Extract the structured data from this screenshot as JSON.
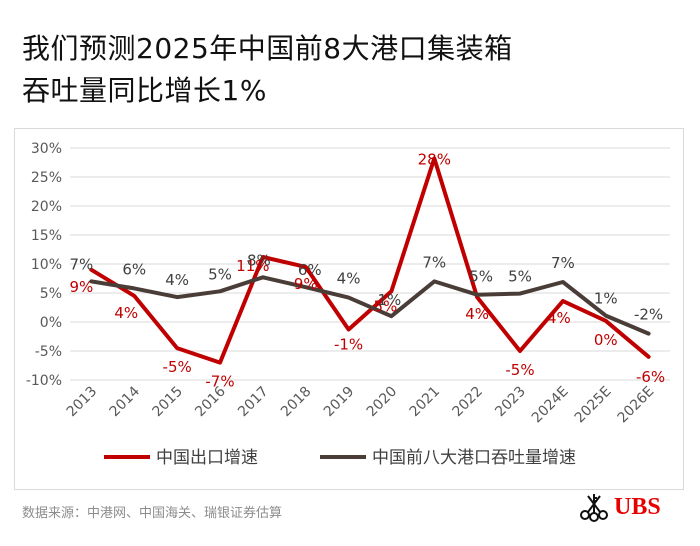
{
  "title": {
    "line1": "我们预测2025年中国前8大港口集装箱",
    "line2": "吞吐量同比增长1%"
  },
  "source": "数据来源：中港网、中国海关、瑞银证券估算",
  "logo": {
    "text": "UBS",
    "color": "#e60000"
  },
  "chart_data": {
    "type": "line",
    "categories": [
      "2013",
      "2014",
      "2015",
      "2016",
      "2017",
      "2018",
      "2019",
      "2020",
      "2021",
      "2022",
      "2023",
      "2024E",
      "2025E",
      "2026E"
    ],
    "ylim": [
      -10,
      30
    ],
    "yticks": [
      -10,
      -5,
      0,
      5,
      10,
      15,
      20,
      25,
      30
    ],
    "ytick_labels": [
      "-10%",
      "-5%",
      "0%",
      "5%",
      "10%",
      "15%",
      "20%",
      "25%",
      "30%"
    ],
    "grid": true,
    "legend_position": "bottom",
    "series": [
      {
        "name": "中国出口增速",
        "color": "#c00000",
        "values": [
          9,
          4.5,
          -4.5,
          -7,
          11.2,
          9.5,
          -1.3,
          5.3,
          28.2,
          4.3,
          -5,
          3.6,
          0.2,
          -6
        ],
        "labels": [
          "9%",
          "4%",
          "-5%",
          "-7%",
          "11%",
          "9%",
          "-1%",
          "5%",
          "28%",
          "4%",
          "-5%",
          "4%",
          "0%",
          "-6%"
        ]
      },
      {
        "name": "中国前八大港口吞吐量增速",
        "color": "#4a3d38",
        "values": [
          7,
          5.8,
          4.3,
          5.3,
          7.7,
          6,
          4.2,
          1,
          7,
          4.7,
          4.9,
          6.9,
          1.1,
          -2
        ],
        "labels": [
          "7%",
          "6%",
          "4%",
          "5%",
          "8%",
          "6%",
          "4%",
          "1%",
          "7%",
          "5%",
          "5%",
          "7%",
          "1%",
          "-2%"
        ]
      }
    ]
  }
}
